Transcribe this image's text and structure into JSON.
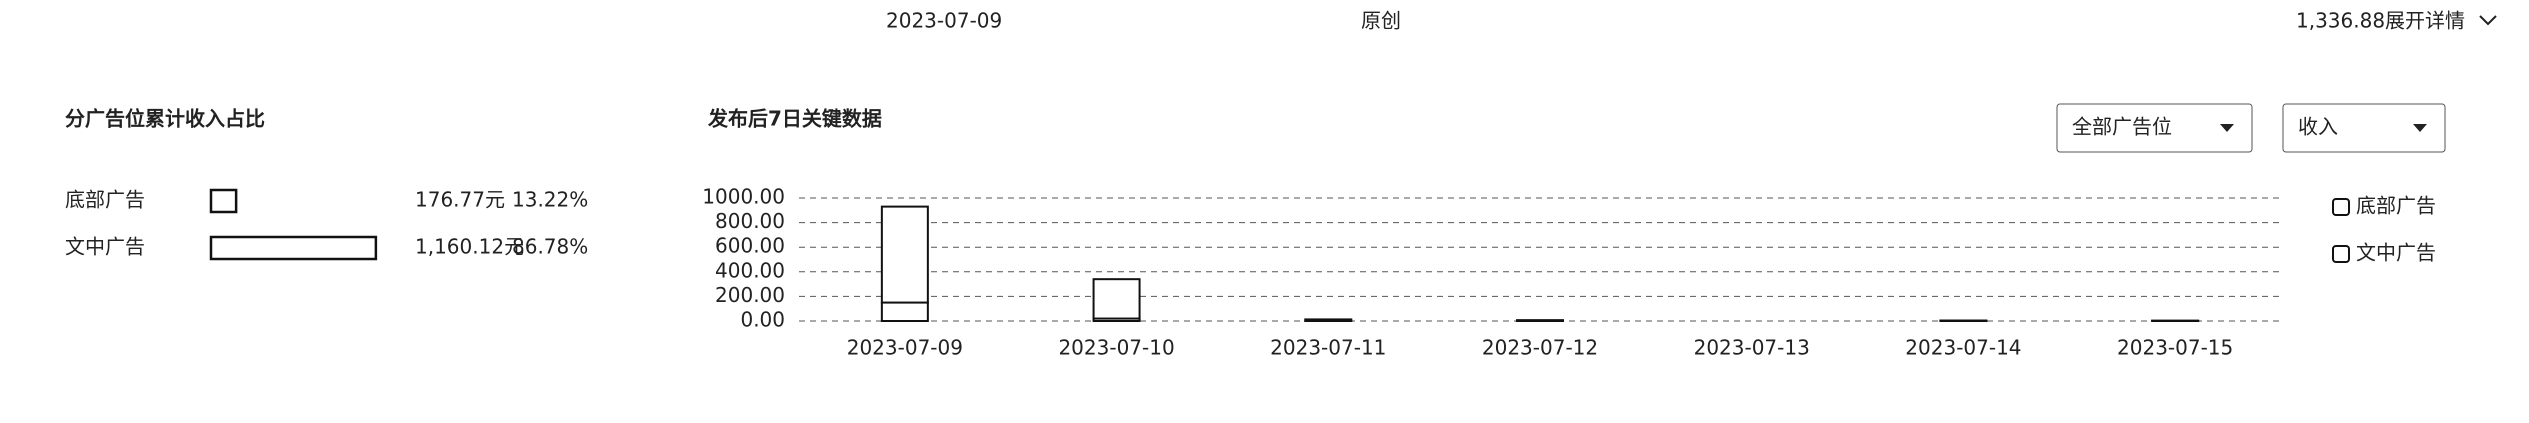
{
  "top_row": {
    "date": "2023-07-09",
    "type": "原创",
    "income": "1,336.88",
    "toggle": "展开详情"
  },
  "left_panel": {
    "title": "分广告位累计收入占比",
    "rows": [
      {
        "label": "底部广告",
        "amount": "176.77元",
        "share": 13.22,
        "share_label": "13.22%"
      },
      {
        "label": "文中广告",
        "amount": "1,160.12元",
        "share": 86.78,
        "share_label": "86.78%"
      }
    ]
  },
  "controls": {
    "position_select": "全部广告位",
    "metric_select": "收入"
  },
  "chart_data": {
    "type": "bar",
    "stacked": true,
    "title": "发布后7日关键数据",
    "categories": [
      "2023-07-09",
      "2023-07-10",
      "2023-07-11",
      "2023-07-12",
      "2023-07-13",
      "2023-07-14",
      "2023-07-15"
    ],
    "series": [
      {
        "name": "底部广告",
        "color": "#ffffff",
        "values": [
          150,
          20,
          3,
          2,
          0,
          1,
          1
        ]
      },
      {
        "name": "文中广告",
        "color": "#ffffff",
        "values": [
          780,
          320,
          10,
          5,
          0,
          3,
          2
        ]
      }
    ],
    "ylim": [
      0,
      1000
    ],
    "yticks": [
      {
        "value": 0,
        "label": "0.00"
      },
      {
        "value": 200,
        "label": "200.00"
      },
      {
        "value": 400,
        "label": "400.00"
      },
      {
        "value": 600,
        "label": "600.00"
      },
      {
        "value": 800,
        "label": "800.00"
      },
      {
        "value": 1000,
        "label": "1000.00"
      }
    ],
    "grid": true
  }
}
